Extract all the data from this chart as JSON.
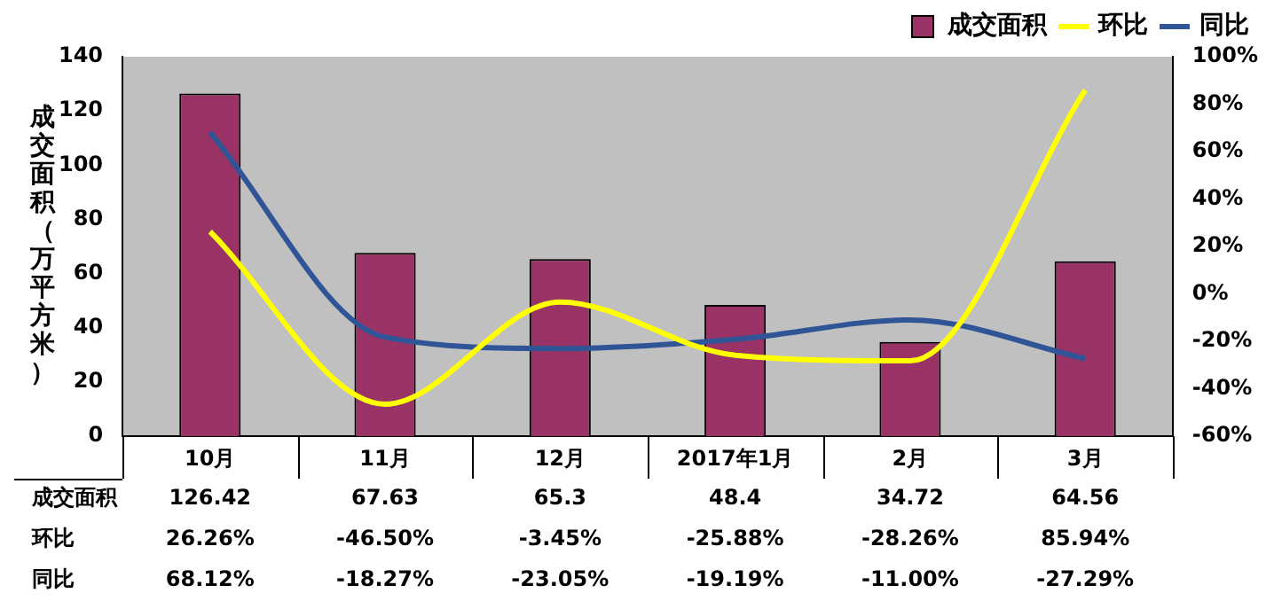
{
  "chart_data": {
    "type": "bar",
    "ylabel": "成交面积（万平方米）",
    "categories": [
      "10月",
      "11月",
      "12月",
      "2017年1月",
      "2月",
      "3月"
    ],
    "series": [
      {
        "name": "成交面积",
        "color": "#993366",
        "values": [
          126.42,
          67.63,
          65.3,
          48.4,
          34.72,
          64.56
        ],
        "value_labels": [
          "126.42",
          "67.63",
          "65.3",
          "48.4",
          "34.72",
          "64.56"
        ]
      },
      {
        "name": "环比",
        "type": "line",
        "axis": "y2",
        "color": "#ffff00",
        "values": [
          26.26,
          -46.5,
          -3.45,
          -25.88,
          -28.26,
          85.94
        ],
        "value_labels": [
          "26.26%",
          "-46.50%",
          "-3.45%",
          "-25.88%",
          "-28.26%",
          "85.94%"
        ]
      },
      {
        "name": "同比",
        "type": "line",
        "axis": "y2",
        "color": "#2f5597",
        "values": [
          68.12,
          -18.27,
          -23.05,
          -19.19,
          -11.0,
          -27.29
        ],
        "value_labels": [
          "68.12%",
          "-18.27%",
          "-23.05%",
          "-19.19%",
          "-11.00%",
          "-27.29%"
        ]
      }
    ],
    "ylim": [
      0,
      140
    ],
    "yticks": [
      0,
      20,
      40,
      60,
      80,
      100,
      120,
      140
    ],
    "y2lim": [
      -60,
      100
    ],
    "y2ticks": [
      {
        "value": -60,
        "label": "-60%"
      },
      {
        "value": -40,
        "label": "-40%"
      },
      {
        "value": -20,
        "label": "-20%"
      },
      {
        "value": 0,
        "label": "0%"
      },
      {
        "value": 20,
        "label": "20%"
      },
      {
        "value": 40,
        "label": "40%"
      },
      {
        "value": 60,
        "label": "60%"
      },
      {
        "value": 80,
        "label": "80%"
      },
      {
        "value": 100,
        "label": "100%"
      }
    ],
    "legend": "top right",
    "grid": false,
    "marker": "none"
  }
}
